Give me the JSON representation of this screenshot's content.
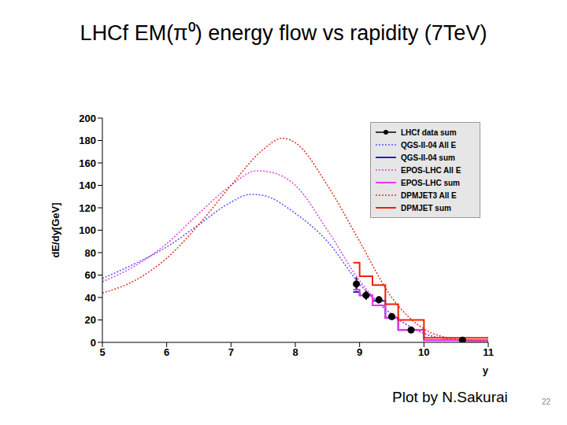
{
  "chart_data": {
    "type": "line",
    "title": "LHCf EM(π⁰) energy flow vs rapidity (7TeV)",
    "x_label": "y",
    "y_label": "dE/dy[GeV]",
    "xlim": [
      5,
      11
    ],
    "xticks": [
      5,
      6,
      7,
      8,
      9,
      10,
      11
    ],
    "ylim": [
      0,
      200
    ],
    "yticks": [
      0,
      20,
      40,
      60,
      80,
      100,
      120,
      140,
      160,
      180,
      200
    ],
    "grid": false,
    "legend": "upper right",
    "series": [
      {
        "name": "LHCf data sum",
        "type": "scatter",
        "marker": "circle",
        "color": "#000000",
        "x": [
          8.95,
          9.1,
          9.3,
          9.5,
          9.8,
          10.6
        ],
        "values": [
          52,
          42,
          38,
          23,
          11,
          2
        ],
        "errors": [
          6,
          4,
          3,
          2,
          1,
          1
        ]
      },
      {
        "name": "QGS-II-04 All E",
        "type": "line",
        "line_style": "dotted",
        "color": "#5555ff",
        "x": [
          5,
          5.5,
          6,
          6.5,
          7,
          7.3,
          7.5,
          8,
          8.5,
          9,
          9.5,
          10,
          10.5,
          11
        ],
        "values": [
          57,
          70,
          85,
          105,
          125,
          132,
          131,
          115,
          90,
          52,
          25,
          8,
          2,
          0
        ]
      },
      {
        "name": "QGS-II-04 sum",
        "type": "step",
        "line_style": "solid",
        "color": "#2222cc",
        "bins": [
          8.9,
          9.0,
          9.2,
          9.4,
          9.6,
          10.0,
          11.0
        ],
        "values": [
          45,
          42,
          37,
          22,
          11,
          2
        ]
      },
      {
        "name": "EPOS-LHC All E",
        "type": "line",
        "line_style": "dotted",
        "color": "#dd44dd",
        "x": [
          5,
          5.5,
          6,
          6.5,
          7,
          7.4,
          7.6,
          8,
          8.5,
          9,
          9.5,
          10,
          10.5,
          11
        ],
        "values": [
          54,
          68,
          88,
          115,
          140,
          153,
          152,
          140,
          100,
          55,
          25,
          8,
          2,
          0
        ]
      },
      {
        "name": "EPOS-LHC sum",
        "type": "step",
        "line_style": "solid",
        "color": "#ee33ee",
        "bins": [
          8.9,
          9.0,
          9.2,
          9.4,
          9.6,
          10.0,
          11.0
        ],
        "values": [
          47,
          42,
          33,
          22,
          11,
          2
        ]
      },
      {
        "name": "DPMJET3 All E",
        "type": "line",
        "line_style": "dotted",
        "color": "#dd3322",
        "x": [
          5,
          5.5,
          6,
          6.5,
          7,
          7.5,
          7.8,
          8,
          8.5,
          9,
          9.5,
          10,
          10.5,
          11
        ],
        "values": [
          44,
          55,
          75,
          105,
          140,
          172,
          182,
          178,
          140,
          90,
          40,
          12,
          3,
          1
        ]
      },
      {
        "name": "DPMJET sum",
        "type": "step",
        "line_style": "solid",
        "color": "#ee2200",
        "bins": [
          8.9,
          9.0,
          9.2,
          9.4,
          9.6,
          10.0,
          11.0
        ],
        "values": [
          71,
          59,
          51,
          34,
          20,
          4
        ]
      }
    ]
  },
  "footer": {
    "credit": "Plot by N.Sakurai",
    "page": "22"
  }
}
